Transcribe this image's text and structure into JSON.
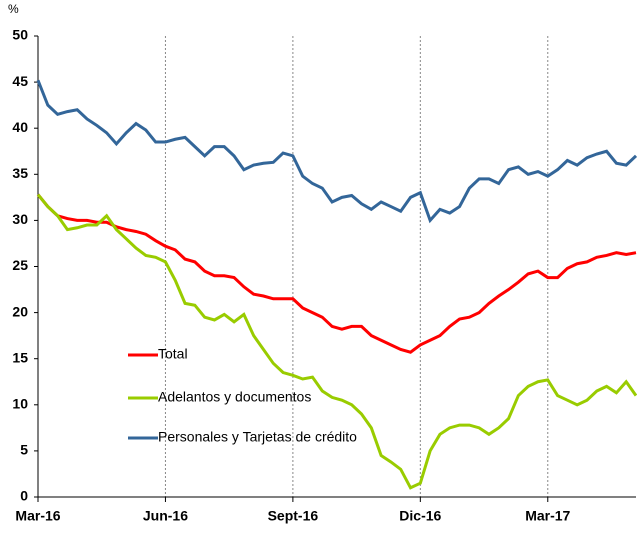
{
  "chart_data": {
    "type": "line",
    "y_label": "%",
    "categories": [
      "Mar-16",
      null,
      null,
      null,
      null,
      null,
      null,
      null,
      null,
      null,
      null,
      null,
      null,
      "Jun-16",
      null,
      null,
      null,
      null,
      null,
      null,
      null,
      null,
      null,
      null,
      null,
      null,
      "Sept-16",
      null,
      null,
      null,
      null,
      null,
      null,
      null,
      null,
      null,
      null,
      null,
      null,
      "Dic-16",
      null,
      null,
      null,
      null,
      null,
      null,
      null,
      null,
      null,
      null,
      null,
      null,
      "Mar-17",
      null,
      null,
      null,
      null,
      null,
      null,
      null,
      null,
      null
    ],
    "series": [
      {
        "name": "Total",
        "color": "#ff0000",
        "values": [
          32.8,
          31.5,
          30.5,
          30.2,
          30,
          30,
          29.8,
          29.8,
          29.3,
          29,
          28.8,
          28.5,
          27.8,
          27.2,
          26.8,
          25.8,
          25.5,
          24.5,
          24,
          24,
          23.8,
          22.8,
          22,
          21.8,
          21.5,
          21.5,
          21.5,
          20.5,
          20,
          19.5,
          18.5,
          18.2,
          18.5,
          18.5,
          17.5,
          17,
          16.5,
          16,
          15.7,
          16.5,
          17,
          17.5,
          18.5,
          19.3,
          19.5,
          20,
          21,
          21.8,
          22.5,
          23.3,
          24.2,
          24.5,
          23.8,
          23.8,
          24.8,
          25.3,
          25.5,
          26,
          26.2,
          26.5,
          26.3,
          26.5
        ]
      },
      {
        "name": "Adelantos y documentos",
        "color": "#99cc00",
        "values": [
          32.8,
          31.5,
          30.5,
          29,
          29.2,
          29.5,
          29.5,
          30.5,
          29,
          28,
          27,
          26.2,
          26,
          25.5,
          23.5,
          21,
          20.8,
          19.5,
          19.2,
          19.8,
          19,
          19.8,
          17.5,
          16,
          14.5,
          13.5,
          13.2,
          12.8,
          13,
          11.5,
          10.8,
          10.5,
          10,
          9,
          7.5,
          4.5,
          3.8,
          3,
          1,
          1.5,
          5,
          6.8,
          7.5,
          7.8,
          7.8,
          7.5,
          6.8,
          7.5,
          8.5,
          11,
          12,
          12.5,
          12.7,
          11,
          10.5,
          10,
          10.5,
          11.5,
          12,
          11.3,
          12.5,
          11
        ]
      },
      {
        "name": "Personales y Tarjetas de crédito",
        "color": "#336699",
        "values": [
          45.2,
          42.5,
          41.5,
          41.8,
          42,
          41,
          40.3,
          39.5,
          38.3,
          39.5,
          40.5,
          39.8,
          38.5,
          38.5,
          38.8,
          39,
          38,
          37,
          38,
          38,
          37,
          35.5,
          36,
          36.2,
          36.3,
          37.3,
          37,
          34.8,
          34,
          33.5,
          32,
          32.5,
          32.7,
          31.8,
          31.2,
          32,
          31.5,
          31,
          32.5,
          33,
          30,
          31.2,
          30.8,
          31.5,
          33.5,
          34.5,
          34.5,
          34,
          35.5,
          35.8,
          35,
          35.3,
          34.8,
          35.5,
          36.5,
          36,
          36.8,
          37.2,
          37.5,
          36.2,
          36,
          37
        ]
      }
    ],
    "ylim": [
      0,
      50
    ],
    "yticks": [
      0,
      5,
      10,
      15,
      20,
      25,
      30,
      35,
      40,
      45,
      50
    ],
    "xgrid": true,
    "legend": "center-left"
  }
}
